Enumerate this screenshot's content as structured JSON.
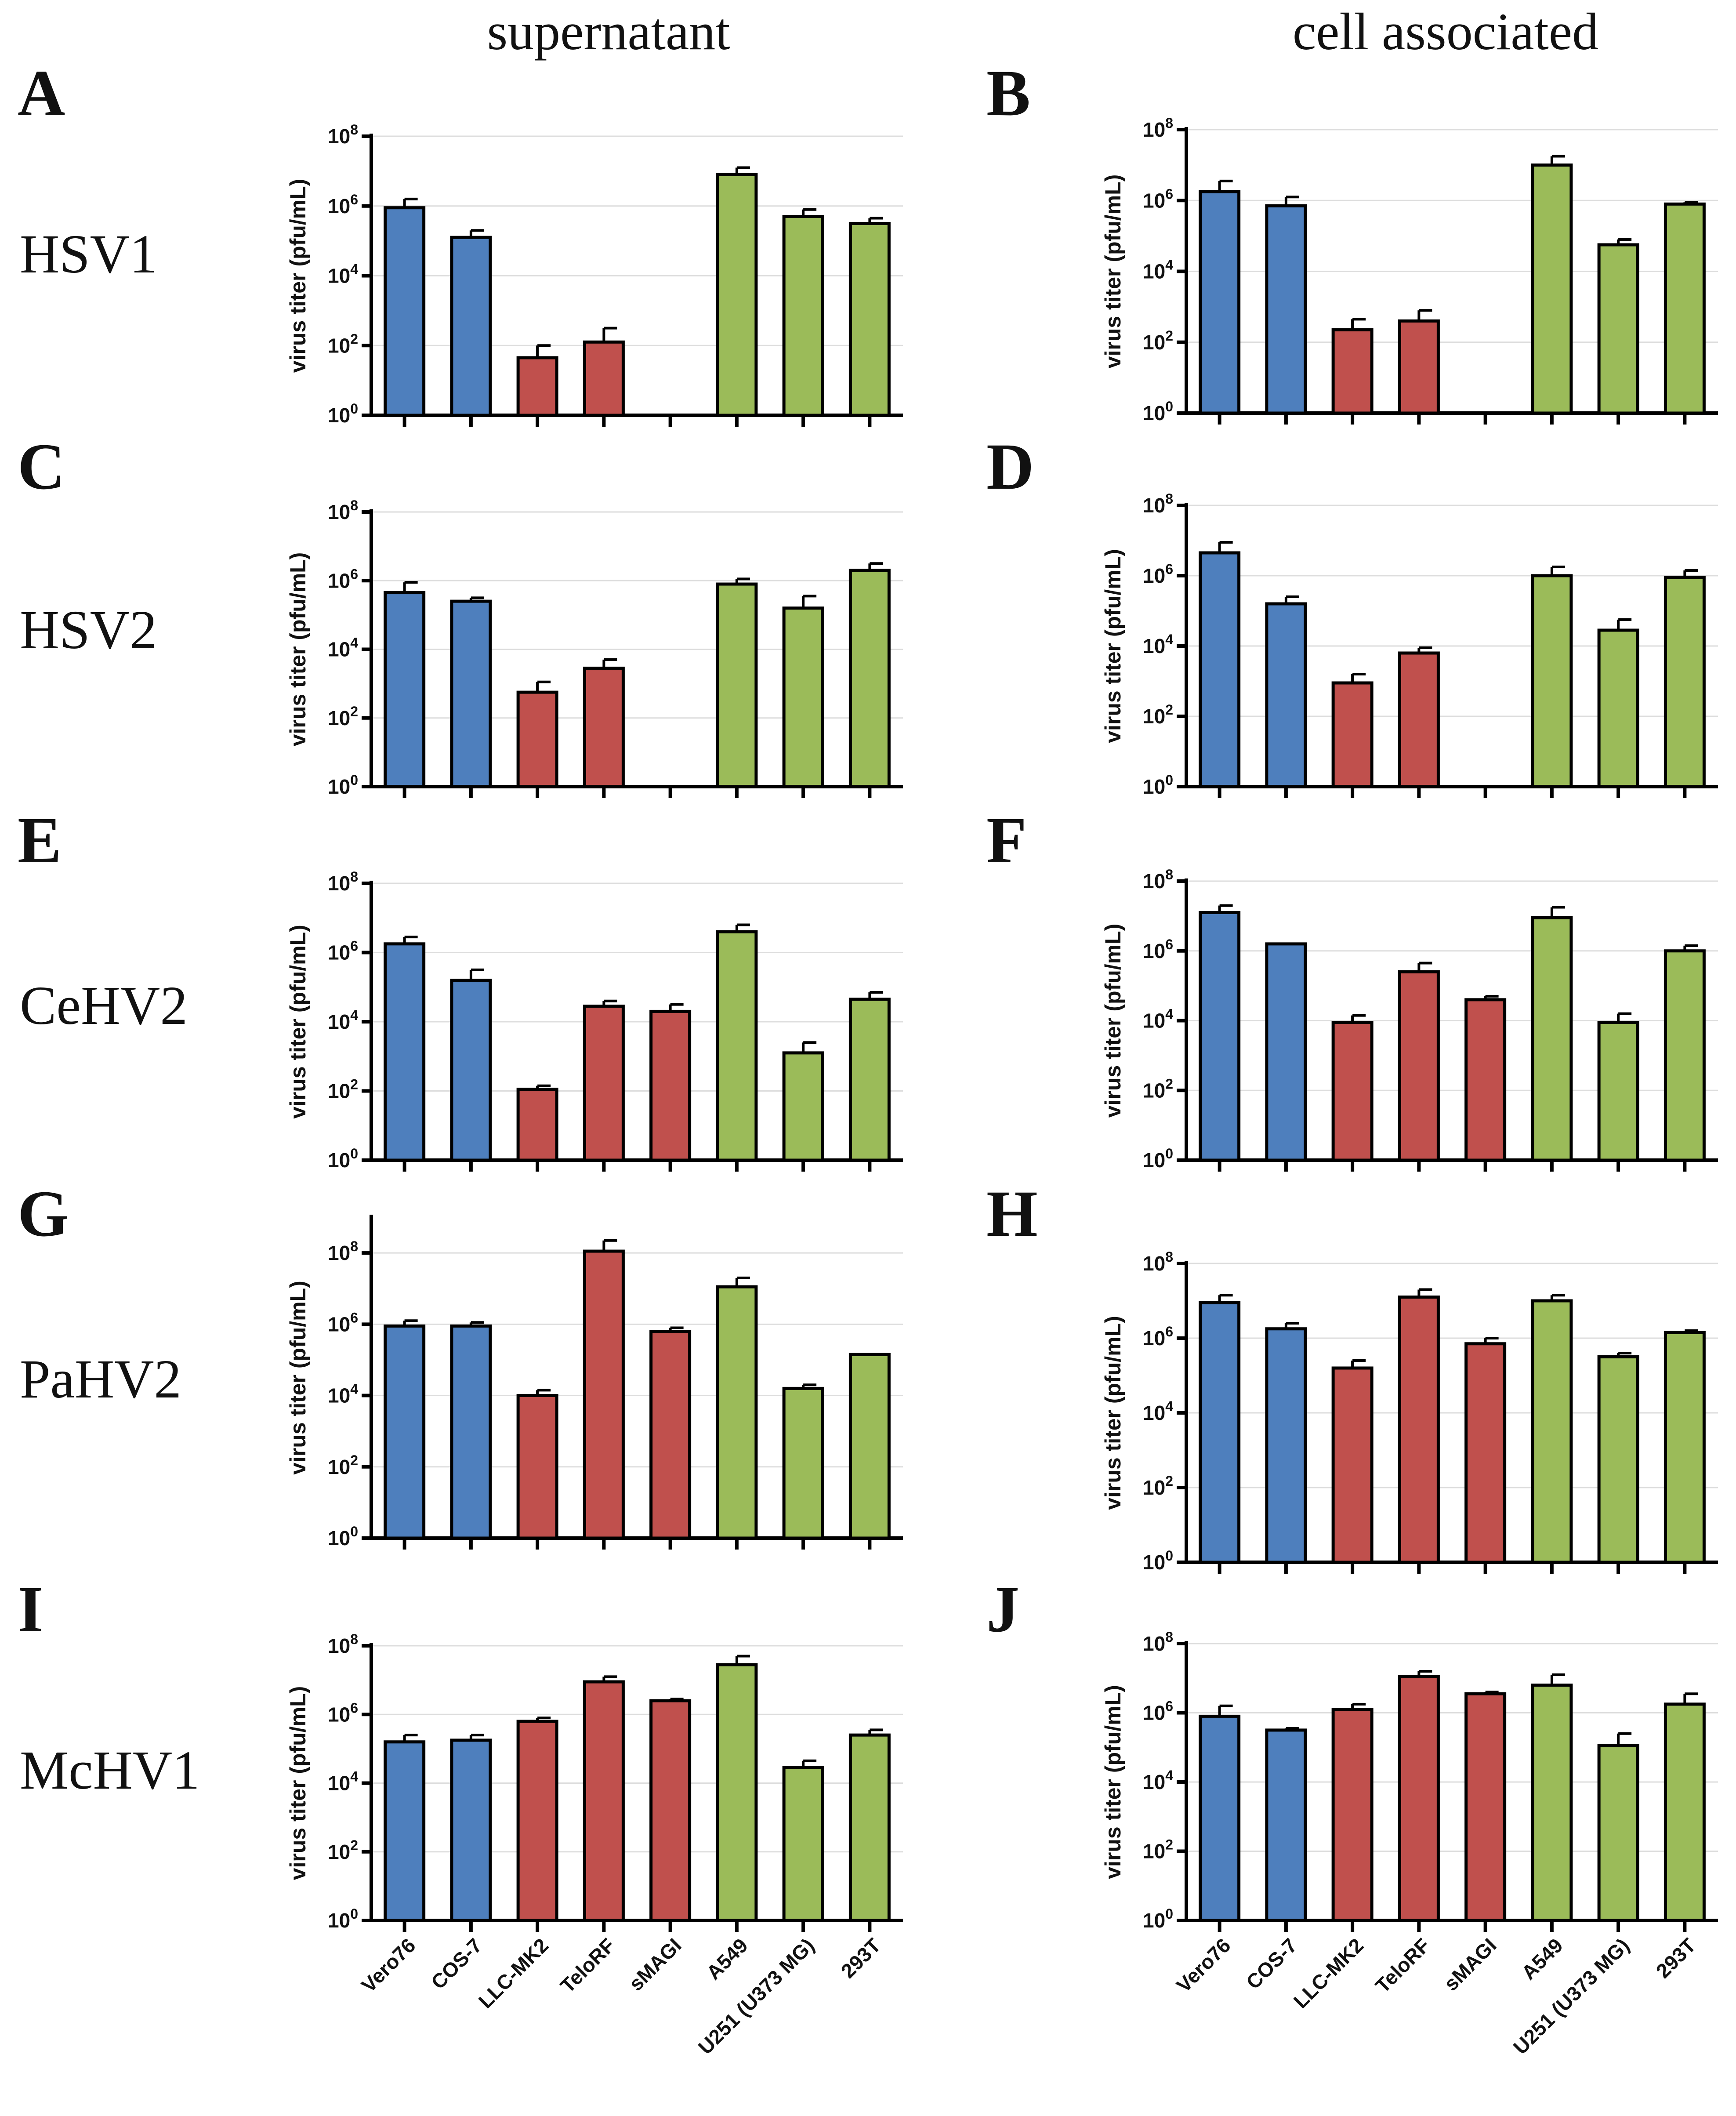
{
  "columns": [
    "supernatant",
    "cell associated"
  ],
  "rows": [
    {
      "virus": "HSV1",
      "letters": [
        "A",
        "B"
      ]
    },
    {
      "virus": "HSV2",
      "letters": [
        "C",
        "D"
      ]
    },
    {
      "virus": "CeHV2",
      "letters": [
        "E",
        "F"
      ]
    },
    {
      "virus": "PaHV2",
      "letters": [
        "G",
        "H"
      ]
    },
    {
      "virus": "McHV1",
      "letters": [
        "I",
        "J"
      ]
    }
  ],
  "colors": {
    "blue": "#4e7fbd",
    "red": "#c0504d",
    "green": "#9bbb59"
  },
  "chart_data": [
    {
      "panel": "A",
      "type": "bar",
      "title": "supernatant",
      "virus": "HSV1",
      "ylabel": "virus titer (pfu/mL)",
      "yscale": "log10",
      "ylim_exp": [
        0,
        8
      ],
      "categories": [
        "Vero76",
        "COS-7",
        "LLC-MK2",
        "TeloRF",
        "sMAGI",
        "A549",
        "U251 (U373 MG)",
        "293T"
      ],
      "groups": [
        "blue",
        "blue",
        "red",
        "red",
        "red",
        "green",
        "green",
        "green"
      ],
      "values_log10": [
        5.95,
        5.1,
        1.65,
        2.1,
        null,
        6.9,
        5.7,
        5.5
      ],
      "error_log10": [
        0.25,
        0.2,
        0.35,
        0.4,
        null,
        0.2,
        0.2,
        0.15
      ]
    },
    {
      "panel": "B",
      "type": "bar",
      "title": "cell associated",
      "virus": "HSV1",
      "ylabel": "virus titer (pfu/mL)",
      "yscale": "log10",
      "ylim_exp": [
        0,
        8
      ],
      "categories": [
        "Vero76",
        "COS-7",
        "LLC-MK2",
        "TeloRF",
        "sMAGI",
        "A549",
        "U251 (U373 MG)",
        "293T"
      ],
      "groups": [
        "blue",
        "blue",
        "red",
        "red",
        "red",
        "green",
        "green",
        "green"
      ],
      "values_log10": [
        6.25,
        5.85,
        2.35,
        2.6,
        null,
        7.0,
        4.75,
        5.9
      ],
      "error_log10": [
        0.3,
        0.25,
        0.3,
        0.3,
        null,
        0.25,
        0.15,
        0.05
      ]
    },
    {
      "panel": "C",
      "type": "bar",
      "title": "supernatant",
      "virus": "HSV2",
      "ylabel": "virus titer (pfu/mL)",
      "yscale": "log10",
      "ylim_exp": [
        0,
        8
      ],
      "categories": [
        "Vero76",
        "COS-7",
        "LLC-MK2",
        "TeloRF",
        "sMAGI",
        "A549",
        "U251 (U373 MG)",
        "293T"
      ],
      "groups": [
        "blue",
        "blue",
        "red",
        "red",
        "red",
        "green",
        "green",
        "green"
      ],
      "values_log10": [
        5.65,
        5.4,
        2.75,
        3.45,
        null,
        5.9,
        5.2,
        6.3
      ],
      "error_log10": [
        0.3,
        0.1,
        0.3,
        0.25,
        null,
        0.15,
        0.35,
        0.2
      ]
    },
    {
      "panel": "D",
      "type": "bar",
      "title": "cell associated",
      "virus": "HSV2",
      "ylabel": "virus titer (pfu/mL)",
      "yscale": "log10",
      "ylim_exp": [
        0,
        8
      ],
      "categories": [
        "Vero76",
        "COS-7",
        "LLC-MK2",
        "TeloRF",
        "sMAGI",
        "A549",
        "U251 (U373 MG)",
        "293T"
      ],
      "groups": [
        "blue",
        "blue",
        "red",
        "red",
        "red",
        "green",
        "green",
        "green"
      ],
      "values_log10": [
        6.65,
        5.2,
        2.95,
        3.8,
        null,
        6.0,
        4.45,
        5.95
      ],
      "error_log10": [
        0.3,
        0.2,
        0.25,
        0.15,
        null,
        0.25,
        0.3,
        0.2
      ]
    },
    {
      "panel": "E",
      "type": "bar",
      "title": "supernatant",
      "virus": "CeHV2",
      "ylabel": "virus titer (pfu/mL)",
      "yscale": "log10",
      "ylim_exp": [
        0,
        8
      ],
      "categories": [
        "Vero76",
        "COS-7",
        "LLC-MK2",
        "TeloRF",
        "sMAGI",
        "A549",
        "U251 (U373 MG)",
        "293T"
      ],
      "groups": [
        "blue",
        "blue",
        "red",
        "red",
        "red",
        "green",
        "green",
        "green"
      ],
      "values_log10": [
        6.25,
        5.2,
        2.05,
        4.45,
        4.3,
        6.6,
        3.1,
        4.65
      ],
      "error_log10": [
        0.2,
        0.3,
        0.1,
        0.15,
        0.2,
        0.2,
        0.3,
        0.2
      ]
    },
    {
      "panel": "F",
      "type": "bar",
      "title": "cell associated",
      "virus": "CeHV2",
      "ylabel": "virus titer (pfu/mL)",
      "yscale": "log10",
      "ylim_exp": [
        0,
        8
      ],
      "categories": [
        "Vero76",
        "COS-7",
        "LLC-MK2",
        "TeloRF",
        "sMAGI",
        "A549",
        "U251 (U373 MG)",
        "293T"
      ],
      "groups": [
        "blue",
        "blue",
        "red",
        "red",
        "red",
        "green",
        "green",
        "green"
      ],
      "values_log10": [
        7.1,
        6.2,
        3.95,
        5.4,
        4.6,
        6.95,
        3.95,
        6.0
      ],
      "error_log10": [
        0.2,
        0.0,
        0.2,
        0.25,
        0.1,
        0.3,
        0.25,
        0.15
      ]
    },
    {
      "panel": "G",
      "type": "bar",
      "title": "supernatant",
      "virus": "PaHV2",
      "ylabel": "virus titer (pfu/mL)",
      "yscale": "log10",
      "ylim_exp": [
        0,
        9
      ],
      "categories": [
        "Vero76",
        "COS-7",
        "LLC-MK2",
        "TeloRF",
        "sMAGI",
        "A549",
        "U251 (U373 MG)",
        "293T"
      ],
      "groups": [
        "blue",
        "blue",
        "red",
        "red",
        "red",
        "green",
        "green",
        "green"
      ],
      "values_log10": [
        5.95,
        5.95,
        4.0,
        8.05,
        5.8,
        7.05,
        4.2,
        5.15
      ],
      "error_log10": [
        0.15,
        0.1,
        0.15,
        0.3,
        0.1,
        0.25,
        0.1,
        0.0
      ]
    },
    {
      "panel": "H",
      "type": "bar",
      "title": "cell associated",
      "virus": "PaHV2",
      "ylabel": "virus titer (pfu/mL)",
      "yscale": "log10",
      "ylim_exp": [
        0,
        8
      ],
      "categories": [
        "Vero76",
        "COS-7",
        "LLC-MK2",
        "TeloRF",
        "sMAGI",
        "A549",
        "U251 (U373 MG)",
        "293T"
      ],
      "groups": [
        "blue",
        "blue",
        "red",
        "red",
        "red",
        "green",
        "green",
        "green"
      ],
      "values_log10": [
        6.95,
        6.25,
        5.2,
        7.1,
        5.85,
        7.0,
        5.5,
        6.15
      ],
      "error_log10": [
        0.2,
        0.15,
        0.2,
        0.2,
        0.15,
        0.15,
        0.1,
        0.05
      ]
    },
    {
      "panel": "I",
      "type": "bar",
      "title": "supernatant",
      "virus": "McHV1",
      "ylabel": "virus titer (pfu/mL)",
      "yscale": "log10",
      "ylim_exp": [
        0,
        8
      ],
      "categories": [
        "Vero76",
        "COS-7",
        "LLC-MK2",
        "TeloRF",
        "sMAGI",
        "A549",
        "U251 (U373 MG)",
        "293T"
      ],
      "groups": [
        "blue",
        "blue",
        "red",
        "red",
        "red",
        "green",
        "green",
        "green"
      ],
      "values_log10": [
        5.2,
        5.25,
        5.8,
        6.95,
        6.4,
        7.45,
        4.45,
        5.4
      ],
      "error_log10": [
        0.2,
        0.15,
        0.1,
        0.15,
        0.05,
        0.25,
        0.2,
        0.15
      ]
    },
    {
      "panel": "J",
      "type": "bar",
      "title": "cell associated",
      "virus": "McHV1",
      "ylabel": "virus titer (pfu/mL)",
      "yscale": "log10",
      "ylim_exp": [
        0,
        8
      ],
      "categories": [
        "Vero76",
        "COS-7",
        "LLC-MK2",
        "TeloRF",
        "sMAGI",
        "A549",
        "U251 (U373 MG)",
        "293T"
      ],
      "groups": [
        "blue",
        "blue",
        "red",
        "red",
        "red",
        "green",
        "green",
        "green"
      ],
      "values_log10": [
        5.9,
        5.5,
        6.1,
        7.05,
        6.55,
        6.8,
        5.05,
        6.25
      ],
      "error_log10": [
        0.3,
        0.05,
        0.15,
        0.15,
        0.05,
        0.3,
        0.35,
        0.3
      ]
    }
  ]
}
